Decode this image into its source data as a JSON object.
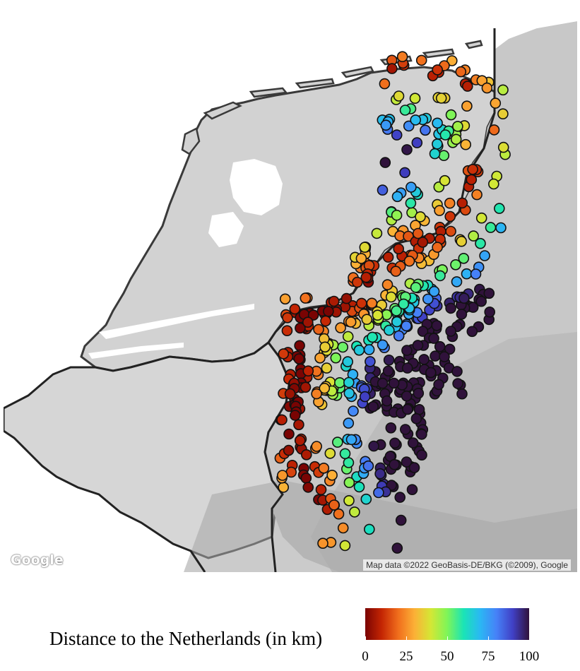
{
  "attribution": "Map data ©2022 GeoBasis-DE/BKG (©2009), Google",
  "logo_text": "Google",
  "legend": {
    "title": "Distance to the Netherlands (in km)",
    "ticks": [
      "0",
      "25",
      "50",
      "75",
      "100"
    ],
    "range": [
      0,
      100
    ],
    "colormap": [
      "#7a0403",
      "#c42503",
      "#f06d1c",
      "#fcb036",
      "#d4e735",
      "#7ff558",
      "#1ae4b6",
      "#2ab8f3",
      "#4682f8",
      "#4040c5",
      "#30123b"
    ]
  },
  "map": {
    "basemap_color": "#dcdcdc",
    "water_color": "#ffffff",
    "border_color": "#222222"
  }
}
